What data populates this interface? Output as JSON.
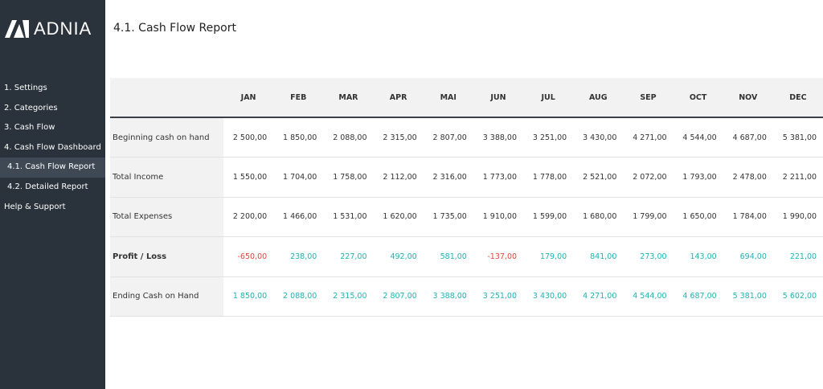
{
  "sidebar": {
    "logo": "ADNIA",
    "nav": [
      "1. Settings",
      "2. Categories",
      "3. Cash Flow",
      "4. Cash Flow Dashboard",
      "4.1. Cash Flow Report",
      "4.2. Detailed Report",
      "Help & Support"
    ],
    "active_index": 4
  },
  "header": {
    "title": "4.1. Cash Flow Report"
  },
  "table": {
    "columns": [
      "JAN",
      "FEB",
      "MAR",
      "APR",
      "MAI",
      "JUN",
      "JUL",
      "AUG",
      "SEP",
      "OCT",
      "NOV",
      "DEC"
    ],
    "rows": [
      {
        "label": "Beginning cash on hand",
        "cells": [
          "2 500,00",
          "1 850,00",
          "2 088,00",
          "2 315,00",
          "2 807,00",
          "3 388,00",
          "3 251,00",
          "3 430,00",
          "4 271,00",
          "4 544,00",
          "4 687,00",
          "5 381,00"
        ]
      },
      {
        "label": "Total Income",
        "cells": [
          "1 550,00",
          "1 704,00",
          "1 758,00",
          "2 112,00",
          "2 316,00",
          "1 773,00",
          "1 778,00",
          "2 521,00",
          "2 072,00",
          "1 793,00",
          "2 478,00",
          "2 211,00"
        ]
      },
      {
        "label": "Total Expenses",
        "cells": [
          "2 200,00",
          "1 466,00",
          "1 531,00",
          "1 620,00",
          "1 735,00",
          "1 910,00",
          "1 599,00",
          "1 680,00",
          "1 799,00",
          "1 650,00",
          "1 784,00",
          "1 990,00"
        ]
      },
      {
        "label": "Profit / Loss",
        "cells": [
          "-650,00",
          "238,00",
          "227,00",
          "492,00",
          "581,00",
          "-137,00",
          "179,00",
          "841,00",
          "273,00",
          "143,00",
          "694,00",
          "221,00"
        ]
      },
      {
        "label": "Ending Cash on Hand",
        "cells": [
          "1 850,00",
          "2 088,00",
          "2 315,00",
          "2 807,00",
          "3 388,00",
          "3 251,00",
          "3 430,00",
          "4 271,00",
          "4 544,00",
          "4 687,00",
          "5 381,00",
          "5 602,00"
        ]
      }
    ]
  }
}
